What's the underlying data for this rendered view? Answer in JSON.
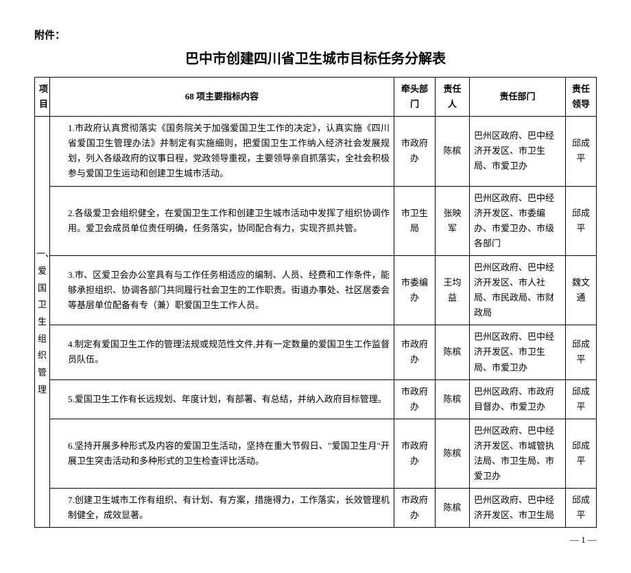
{
  "attachment_label": "附件：",
  "title": "巴中市创建四川省卫生城市目标任务分解表",
  "headers": {
    "project": "项目",
    "indicator": "68 项主要指标内容",
    "lead_dept": "牵头部门",
    "person": "责任人",
    "resp_dept": "责任部门",
    "resp_leader": "责任领导"
  },
  "category": "一、爱国卫生组织管理",
  "rows": [
    {
      "indicator": "1.市政府认真贯彻落实《国务院关于加强爱国卫生工作的决定》，认真实施《四川省爱国卫生管理办法》并制定有实施细则，把爱国卫生工作纳入经济社会发展规划，列入各级政府的议事日程，党政领导重视，主要领导亲自抓落实，全社会积极参与爱国卫生运动和创建卫生城市活动。",
      "lead_dept": "市政府办",
      "person": "陈槟",
      "resp_dept": "巴州区政府、巴中经济开发区、市卫生局、市爱卫办",
      "resp_leader": "邱成平"
    },
    {
      "indicator": "2.各级爱卫会组织健全，在爱国卫生工作和创建卫生城市活动中发挥了组织协调作用。爱卫会成员单位责任明确，任务落实，协同配合有力，实现齐抓共管。",
      "lead_dept": "市卫生局",
      "person": "张映军",
      "resp_dept": "巴州区政府、巴中经济开发区、市委编办、市爱卫办、市级各部门",
      "resp_leader": "邱成平"
    },
    {
      "indicator": "3.市、区爱卫会办公室具有与工作任务相适应的编制、人员、经费和工作条件，能够承担组织、协调各部门共同履行社会卫生的工作职责。街道办事处、社区居委会等基层单位配备有专（兼）职爱国卫生工作人员。",
      "lead_dept": "市委编办",
      "person": "王均益",
      "resp_dept": "巴州区政府、巴中经济开发区、市人社局、市民政局、市财政局",
      "resp_leader": "魏文通"
    },
    {
      "indicator": "4.制定有爱国卫生工作的管理法规或规范性文件,并有一定数量的爱国卫生工作监督员队伍。",
      "lead_dept": "市政府办",
      "person": "陈槟",
      "resp_dept": "巴州区政府、巴中经济开发区、市卫生局、市爱卫办",
      "resp_leader": "邱成平"
    },
    {
      "indicator": "5.爱国卫生工作有长远规划、年度计划，有部署、有总结，并纳入政府目标管理。",
      "lead_dept": "市政府办",
      "person": "陈槟",
      "resp_dept": "巴州区政府、市政府目督办、市爱卫办",
      "resp_leader": "邱成平"
    },
    {
      "indicator": "6.坚持开展多种形式及内容的爱国卫生活动，坚持在重大节假日、\"爱国卫生月\"开展卫生突击活动和多种形式的卫生检查评比活动。",
      "lead_dept": "市政府办",
      "person": "陈槟",
      "resp_dept": "巴州区政府、巴中经济开发区、市城管执法局、市卫生局、市爱卫办",
      "resp_leader": "邱成平"
    },
    {
      "indicator": "7.创建卫生城市工作有组织、有计划、有方案，措施得力，工作落实，长效管理机制健全，成效显著。",
      "lead_dept": "市政府办",
      "person": "陈槟",
      "resp_dept": "巴州区政府、巴中经济开发区、市卫生局",
      "resp_leader": "邱成平"
    }
  ],
  "page_number": "— 1 —"
}
